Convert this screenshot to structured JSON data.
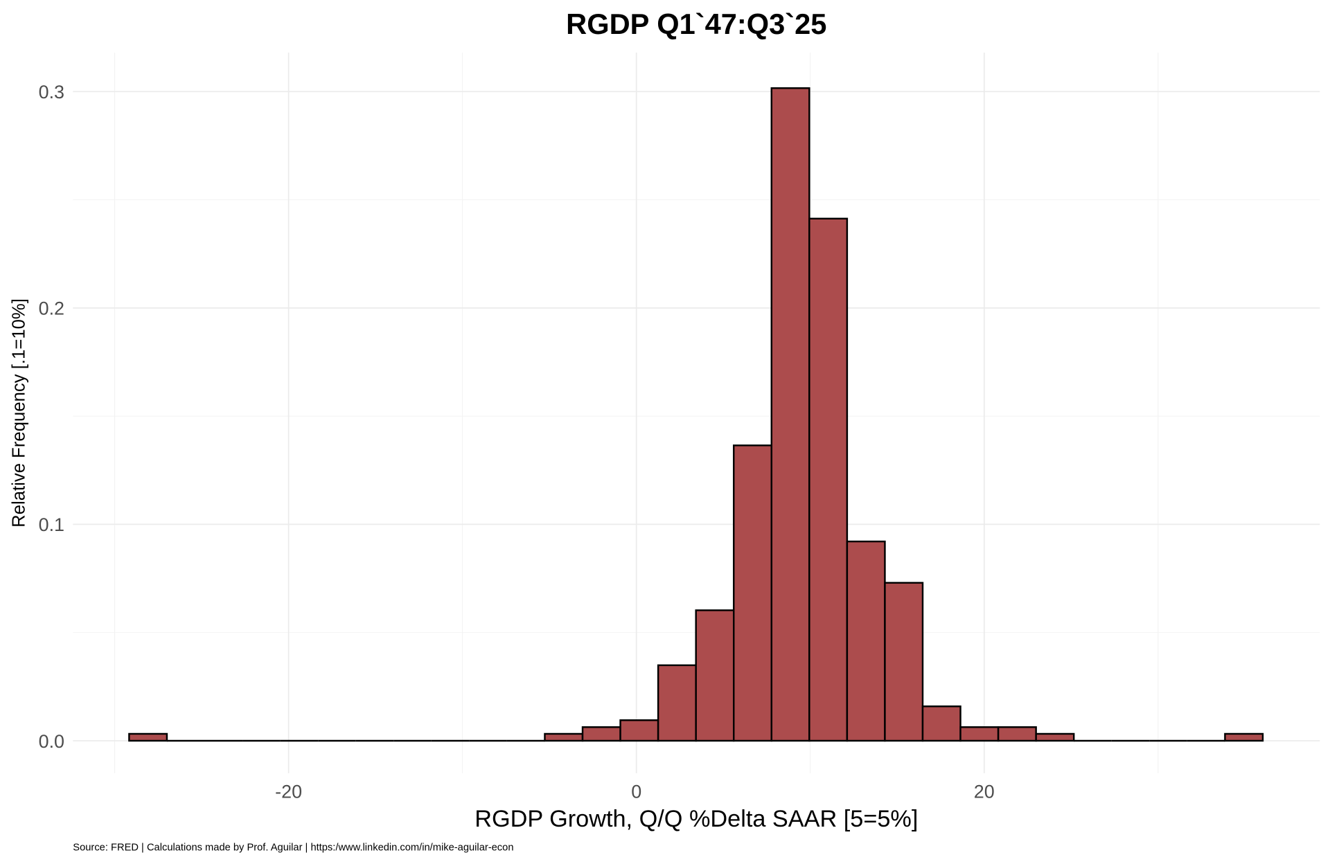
{
  "chart_data": {
    "type": "bar",
    "subtype": "histogram",
    "title": "RGDP Q1`47:Q3`25",
    "xlabel": "RGDP Growth, Q/Q %Delta SAAR [5=5%]",
    "ylabel": "Relative Frequency [.1=10%]",
    "caption": "Source: FRED | Calculations made by Prof. Aguilar | https:/www.linkedin.com/in/mike-aguilar-econ",
    "x_ticks": [
      "-20",
      "0",
      "20"
    ],
    "x_tick_values": [
      -20,
      0,
      20
    ],
    "y_ticks": [
      "0.0",
      "0.1",
      "0.2",
      "0.3"
    ],
    "y_tick_values": [
      0,
      0.1,
      0.2,
      0.3
    ],
    "xlim": [
      -32.4,
      39.3
    ],
    "ylim": [
      -0.015,
      0.318
    ],
    "grid": true,
    "bin_start": -29.17,
    "bin_width": 2.173,
    "values": [
      0.0032,
      0,
      0,
      0,
      0,
      0,
      0,
      0,
      0,
      0,
      0,
      0.0032,
      0.0063,
      0.0095,
      0.0349,
      0.0603,
      0.1365,
      0.3016,
      0.2413,
      0.0921,
      0.073,
      0.0159,
      0.0063,
      0.0063,
      0.0032,
      0,
      0,
      0,
      0,
      0.0032
    ],
    "fill_color": "#ac4c4d",
    "outline_color": "#000000"
  }
}
